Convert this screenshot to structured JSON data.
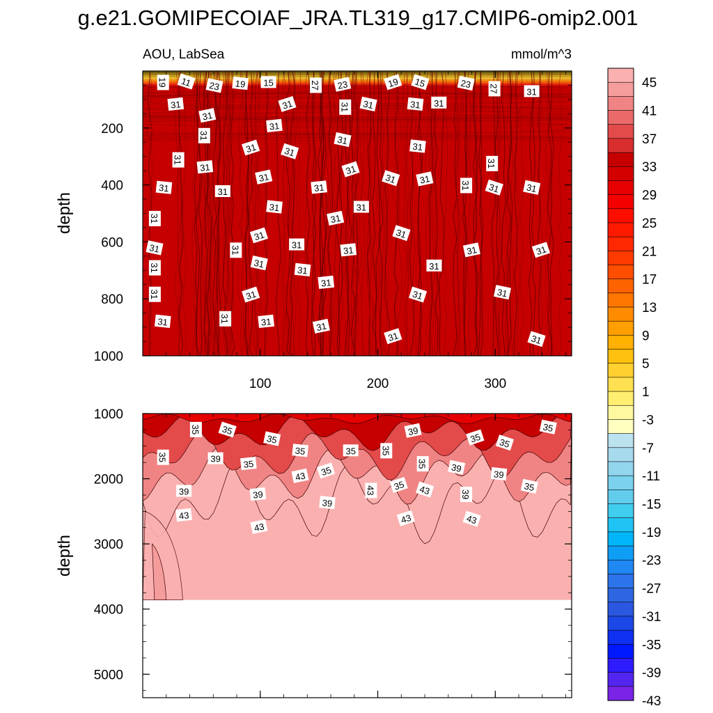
{
  "chart_data": {
    "type": "contour",
    "title": "g.e21.GOMIPECOIAF_JRA.TL319_g17.CMIP6-omip2.001",
    "left_subtitle": "AOU, LabSea",
    "right_subtitle": "mmol/m^3",
    "colors": {
      "background": "#ffffff",
      "line": "#000000",
      "surface_band": "#6b5a10"
    },
    "colorbar": {
      "levels": [
        -45,
        -43,
        -41,
        -39,
        -37,
        -35,
        -33,
        -31,
        -29,
        -27,
        -25,
        -23,
        -21,
        -19,
        -17,
        -15,
        -13,
        -11,
        -9,
        -7,
        -5,
        -3,
        -1,
        1,
        3,
        5,
        7,
        9,
        11,
        13,
        15,
        17,
        19,
        21,
        23,
        25,
        27,
        29,
        31,
        33,
        35,
        37,
        39,
        41,
        43,
        45
      ],
      "tick_labels": [
        "45",
        "41",
        "37",
        "33",
        "29",
        "25",
        "21",
        "17",
        "13",
        "9",
        "5",
        "1",
        "-3",
        "-7",
        "-11",
        "-15",
        "-19",
        "-23",
        "-27",
        "-31",
        "-35",
        "-39",
        "-43"
      ],
      "colors": [
        "#7a24e6",
        "#5326f0",
        "#2e1cff",
        "#0018ff",
        "#0f30f0",
        "#1d48e8",
        "#2a58e0",
        "#2e66e2",
        "#2c74ea",
        "#1f88f2",
        "#0f9ef6",
        "#00b6f8",
        "#20c4f4",
        "#40ceee",
        "#62cced",
        "#7ad2ef",
        "#92d6ee",
        "#a8daee",
        "#bce2f0",
        "#ffffc0",
        "#fff8a0",
        "#ffee70",
        "#ffe050",
        "#ffd030",
        "#ffc010",
        "#ffb000",
        "#ff9e00",
        "#ff8c00",
        "#ff7600",
        "#ff6200",
        "#ff4e00",
        "#ff3a00",
        "#ff2800",
        "#ff1a00",
        "#ff0e00",
        "#f40000",
        "#e60000",
        "#d40000",
        "#c60000",
        "#da2e2e",
        "#e34a4a",
        "#ea6a6a",
        "#f08484",
        "#f59c9c",
        "#fbb0b0"
      ]
    },
    "panels": [
      {
        "name": "upper",
        "xlim": [
          0,
          365
        ],
        "ylim": [
          0,
          1000
        ],
        "y_inverted": true,
        "ylabel": "depth",
        "yticks": [
          200,
          400,
          600,
          800,
          1000
        ],
        "ytick_labels": [
          "200",
          "400",
          "600",
          "800",
          "1000"
        ],
        "xticks": [
          100,
          200,
          300
        ],
        "xtick_labels": [
          "100",
          "200",
          "300"
        ],
        "fill_level": 31,
        "contour_labels": [
          {
            "x": 17,
            "y": 40,
            "text": "19"
          },
          {
            "x": 37,
            "y": 38,
            "text": "11"
          },
          {
            "x": 61,
            "y": 52,
            "text": "23"
          },
          {
            "x": 83,
            "y": 44,
            "text": "19"
          },
          {
            "x": 107,
            "y": 40,
            "text": "15"
          },
          {
            "x": 147,
            "y": 50,
            "text": "27"
          },
          {
            "x": 170,
            "y": 48,
            "text": "23"
          },
          {
            "x": 213,
            "y": 40,
            "text": "19"
          },
          {
            "x": 236,
            "y": 40,
            "text": "15"
          },
          {
            "x": 275,
            "y": 44,
            "text": "23"
          },
          {
            "x": 299,
            "y": 62,
            "text": "27"
          },
          {
            "x": 331,
            "y": 72,
            "text": "31"
          },
          {
            "x": 28,
            "y": 117,
            "text": "31"
          },
          {
            "x": 55,
            "y": 157,
            "text": "31"
          },
          {
            "x": 123,
            "y": 117,
            "text": "31"
          },
          {
            "x": 172,
            "y": 127,
            "text": "31"
          },
          {
            "x": 192,
            "y": 117,
            "text": "31"
          },
          {
            "x": 232,
            "y": 117,
            "text": "31"
          },
          {
            "x": 252,
            "y": 112,
            "text": "31"
          },
          {
            "x": 112,
            "y": 193,
            "text": "31"
          },
          {
            "x": 52,
            "y": 227,
            "text": "31"
          },
          {
            "x": 92,
            "y": 270,
            "text": "31"
          },
          {
            "x": 125,
            "y": 283,
            "text": "31"
          },
          {
            "x": 170,
            "y": 242,
            "text": "31"
          },
          {
            "x": 234,
            "y": 265,
            "text": "31"
          },
          {
            "x": 30,
            "y": 312,
            "text": "31"
          },
          {
            "x": 53,
            "y": 338,
            "text": "31"
          },
          {
            "x": 103,
            "y": 373,
            "text": "31"
          },
          {
            "x": 177,
            "y": 346,
            "text": "31"
          },
          {
            "x": 211,
            "y": 377,
            "text": "31"
          },
          {
            "x": 297,
            "y": 325,
            "text": "31"
          },
          {
            "x": 18,
            "y": 410,
            "text": "31"
          },
          {
            "x": 68,
            "y": 423,
            "text": "31"
          },
          {
            "x": 150,
            "y": 409,
            "text": "31"
          },
          {
            "x": 240,
            "y": 380,
            "text": "31"
          },
          {
            "x": 275,
            "y": 402,
            "text": "31"
          },
          {
            "x": 299,
            "y": 410,
            "text": "31"
          },
          {
            "x": 331,
            "y": 410,
            "text": "31"
          },
          {
            "x": 112,
            "y": 478,
            "text": "31"
          },
          {
            "x": 186,
            "y": 478,
            "text": "31"
          },
          {
            "x": 10,
            "y": 518,
            "text": "31"
          },
          {
            "x": 164,
            "y": 518,
            "text": "31"
          },
          {
            "x": 99,
            "y": 578,
            "text": "31"
          },
          {
            "x": 220,
            "y": 570,
            "text": "31"
          },
          {
            "x": 10,
            "y": 622,
            "text": "31"
          },
          {
            "x": 79,
            "y": 629,
            "text": "31"
          },
          {
            "x": 131,
            "y": 610,
            "text": "31"
          },
          {
            "x": 175,
            "y": 629,
            "text": "31"
          },
          {
            "x": 280,
            "y": 629,
            "text": "31"
          },
          {
            "x": 339,
            "y": 629,
            "text": "31"
          },
          {
            "x": 10,
            "y": 691,
            "text": "31"
          },
          {
            "x": 99,
            "y": 675,
            "text": "31"
          },
          {
            "x": 136,
            "y": 699,
            "text": "31"
          },
          {
            "x": 248,
            "y": 684,
            "text": "31"
          },
          {
            "x": 156,
            "y": 743,
            "text": "31"
          },
          {
            "x": 10,
            "y": 784,
            "text": "31"
          },
          {
            "x": 92,
            "y": 786,
            "text": "31"
          },
          {
            "x": 234,
            "y": 786,
            "text": "31"
          },
          {
            "x": 306,
            "y": 778,
            "text": "31"
          },
          {
            "x": 17,
            "y": 880,
            "text": "31"
          },
          {
            "x": 70,
            "y": 870,
            "text": "31"
          },
          {
            "x": 105,
            "y": 880,
            "text": "31"
          },
          {
            "x": 152,
            "y": 897,
            "text": "31"
          },
          {
            "x": 213,
            "y": 932,
            "text": "31"
          },
          {
            "x": 335,
            "y": 942,
            "text": "31"
          }
        ]
      },
      {
        "name": "lower",
        "xlim": [
          0,
          365
        ],
        "ylim": [
          1000,
          5360
        ],
        "y_inverted": true,
        "ylabel": "depth",
        "yticks": [
          1000,
          2000,
          3000,
          4000,
          5000
        ],
        "ytick_labels": [
          "1000",
          "2000",
          "3000",
          "4000",
          "5000"
        ],
        "xticks": [
          100,
          200,
          300
        ],
        "xtick_labels": [],
        "bottom_depth": 3860,
        "fill_level": 45,
        "contour_labels": [
          {
            "x": 45,
            "y": 1245,
            "text": "35"
          },
          {
            "x": 72,
            "y": 1250,
            "text": "35"
          },
          {
            "x": 110,
            "y": 1390,
            "text": "35"
          },
          {
            "x": 134,
            "y": 1570,
            "text": "35"
          },
          {
            "x": 177,
            "y": 1570,
            "text": "35"
          },
          {
            "x": 207,
            "y": 1570,
            "text": "35"
          },
          {
            "x": 230,
            "y": 1265,
            "text": "39"
          },
          {
            "x": 283,
            "y": 1370,
            "text": "35"
          },
          {
            "x": 308,
            "y": 1450,
            "text": "35"
          },
          {
            "x": 345,
            "y": 1210,
            "text": "35"
          },
          {
            "x": 17,
            "y": 1670,
            "text": "35"
          },
          {
            "x": 62,
            "y": 1690,
            "text": "39"
          },
          {
            "x": 90,
            "y": 1770,
            "text": "35"
          },
          {
            "x": 134,
            "y": 1960,
            "text": "43"
          },
          {
            "x": 156,
            "y": 1880,
            "text": "35"
          },
          {
            "x": 238,
            "y": 1770,
            "text": "35"
          },
          {
            "x": 267,
            "y": 1830,
            "text": "39"
          },
          {
            "x": 303,
            "y": 1930,
            "text": "39"
          },
          {
            "x": 35,
            "y": 2190,
            "text": "39"
          },
          {
            "x": 98,
            "y": 2240,
            "text": "39"
          },
          {
            "x": 194,
            "y": 2180,
            "text": "43"
          },
          {
            "x": 218,
            "y": 2100,
            "text": "35"
          },
          {
            "x": 240,
            "y": 2170,
            "text": "43"
          },
          {
            "x": 329,
            "y": 2120,
            "text": "35"
          },
          {
            "x": 157,
            "y": 2370,
            "text": "39"
          },
          {
            "x": 275,
            "y": 2240,
            "text": "39"
          },
          {
            "x": 35,
            "y": 2560,
            "text": "43"
          },
          {
            "x": 99,
            "y": 2740,
            "text": "43"
          },
          {
            "x": 224,
            "y": 2610,
            "text": "43"
          },
          {
            "x": 280,
            "y": 2620,
            "text": "43"
          }
        ]
      }
    ]
  }
}
